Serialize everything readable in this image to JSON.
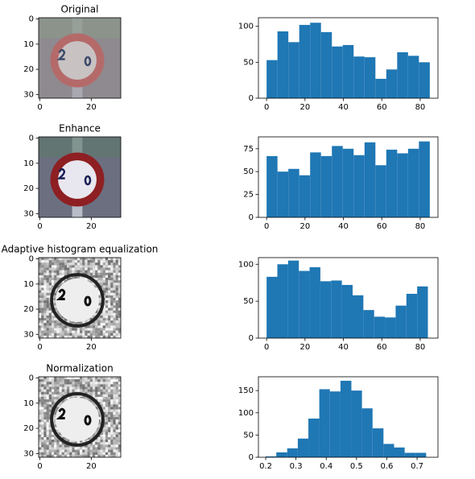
{
  "chart_data": [
    {
      "type": "image",
      "title": "Original",
      "xlim": [
        -0.5,
        31.5
      ],
      "ylim": [
        31.5,
        -0.5
      ],
      "xticks": [
        0,
        20
      ],
      "yticks": [
        0,
        10,
        20,
        30
      ]
    },
    {
      "type": "histogram",
      "bins": [
        0,
        5.67,
        11.33,
        17,
        22.67,
        28.33,
        34,
        39.67,
        45.33,
        51,
        56.67,
        62.33,
        68,
        73.67,
        79.33,
        85
      ],
      "counts": [
        53,
        93,
        78,
        102,
        105,
        92,
        72,
        74,
        58,
        57,
        27,
        40,
        64,
        59,
        50
      ],
      "color": "#1f77b4",
      "xlim": [
        -4.25,
        89.25
      ],
      "ylim": [
        0,
        112
      ],
      "xticks": [
        0,
        20,
        40,
        60,
        80
      ],
      "yticks": [
        0,
        50,
        100
      ]
    },
    {
      "type": "image",
      "title": "Enhance",
      "xlim": [
        -0.5,
        31.5
      ],
      "ylim": [
        31.5,
        -0.5
      ],
      "xticks": [
        0,
        20
      ],
      "yticks": [
        0,
        10,
        20,
        30
      ]
    },
    {
      "type": "histogram",
      "bins": [
        0,
        5.67,
        11.33,
        17,
        22.67,
        28.33,
        34,
        39.67,
        45.33,
        51,
        56.67,
        62.33,
        68,
        73.67,
        79.33,
        85
      ],
      "counts": [
        67,
        50,
        53,
        46,
        71,
        67,
        78,
        75,
        68,
        82,
        57,
        74,
        70,
        75,
        83
      ],
      "color": "#1f77b4",
      "xlim": [
        -4.25,
        89.25
      ],
      "ylim": [
        0,
        88
      ],
      "xticks": [
        0,
        20,
        40,
        60,
        80
      ],
      "yticks": [
        0,
        25,
        50,
        75
      ]
    },
    {
      "type": "image",
      "title": "Adaptive histogram equalization",
      "xlim": [
        -0.5,
        31.5
      ],
      "ylim": [
        31.5,
        -0.5
      ],
      "xticks": [
        0,
        20
      ],
      "yticks": [
        0,
        10,
        20,
        30
      ]
    },
    {
      "type": "histogram",
      "bins": [
        0,
        5.6,
        11.2,
        16.8,
        22.4,
        28,
        33.6,
        39.2,
        44.8,
        50.4,
        56,
        61.6,
        67.2,
        72.8,
        78.4,
        84
      ],
      "counts": [
        83,
        100,
        105,
        91,
        96,
        77,
        78,
        72,
        58,
        38,
        29,
        28,
        44,
        60,
        70
      ],
      "color": "#1f77b4",
      "xlim": [
        -4.25,
        89.25
      ],
      "ylim": [
        0,
        109
      ],
      "xticks": [
        0,
        20,
        40,
        60,
        80
      ],
      "yticks": [
        0,
        50,
        100
      ]
    },
    {
      "type": "image",
      "title": "Normalization",
      "xlim": [
        -0.5,
        31.5
      ],
      "ylim": [
        31.5,
        -0.5
      ],
      "xticks": [
        0,
        20
      ],
      "yticks": [
        0,
        10,
        20,
        30
      ]
    },
    {
      "type": "histogram",
      "bins": [
        0.2,
        0.235,
        0.271,
        0.306,
        0.341,
        0.377,
        0.412,
        0.447,
        0.483,
        0.518,
        0.553,
        0.589,
        0.624,
        0.659,
        0.695,
        0.73
      ],
      "counts": [
        2,
        11,
        20,
        42,
        87,
        153,
        148,
        172,
        150,
        110,
        65,
        30,
        22,
        10,
        10
      ],
      "color": "#1f77b4",
      "xlim": [
        0.176,
        0.769
      ],
      "ylim": [
        0,
        181
      ],
      "xticks": [
        0.2,
        0.3,
        0.4,
        0.5,
        0.6,
        0.7
      ],
      "yticks": [
        0,
        50,
        100,
        150
      ]
    }
  ]
}
